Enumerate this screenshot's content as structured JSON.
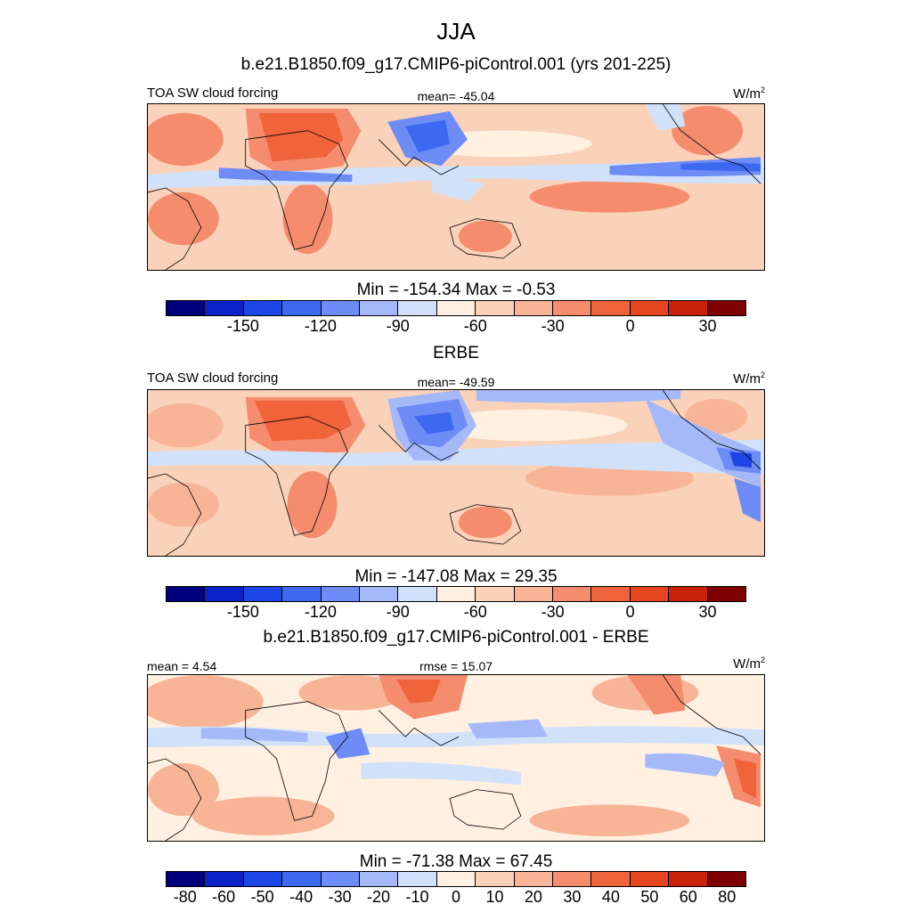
{
  "season": "JJA",
  "colors": {
    "cf16": [
      "#00007f",
      "#0a23c8",
      "#1e46e6",
      "#3c69f0",
      "#6e8cf5",
      "#a5b9f8",
      "#d2e1fa",
      "#fff0e1",
      "#fad2b9",
      "#f8b496",
      "#f58c6e",
      "#f0643c",
      "#e6461e",
      "#c8230a",
      "#7f0000"
    ],
    "diff": [
      "#00007f",
      "#0a23c8",
      "#1e46e6",
      "#3c69f0",
      "#6e8cf5",
      "#a5b9f8",
      "#d2e1fa",
      "#fff0e1",
      "#fad2b9",
      "#f8b496",
      "#f58c6e",
      "#f0643c",
      "#e6461e",
      "#c8230a",
      "#7f0000"
    ]
  },
  "panel1": {
    "header": "b.e21.B1850.f09_g17.CMIP6-piControl.001 (yrs 201-225)",
    "left_label": "TOA SW cloud forcing",
    "mean_label": "mean= -45.04",
    "units": "W/m",
    "units_exp": "2",
    "minmax": "Min = -154.34 Max =  -0.53",
    "ticks": [
      "-150",
      "-120",
      "-90",
      "-60",
      "-30",
      "0",
      "30"
    ]
  },
  "panel2": {
    "header": "ERBE",
    "left_label": "TOA SW cloud forcing",
    "mean_label": "mean= -49.59",
    "units": "W/m",
    "units_exp": "2",
    "minmax": "Min = -147.08 Max =  29.35",
    "ticks": [
      "-150",
      "-120",
      "-90",
      "-60",
      "-30",
      "0",
      "30"
    ]
  },
  "panel3": {
    "header": "b.e21.B1850.f09_g17.CMIP6-piControl.001 - ERBE",
    "mean_label": "mean =   4.54",
    "rmse_label": "rmse =  15.07",
    "units": "W/m",
    "units_exp": "2",
    "minmax": "Min = -71.38 Max =  67.45",
    "ticks": [
      "-80",
      "-60",
      "-50",
      "-40",
      "-30",
      "-20",
      "-10",
      "0",
      "10",
      "20",
      "30",
      "40",
      "50",
      "60",
      "80"
    ]
  }
}
